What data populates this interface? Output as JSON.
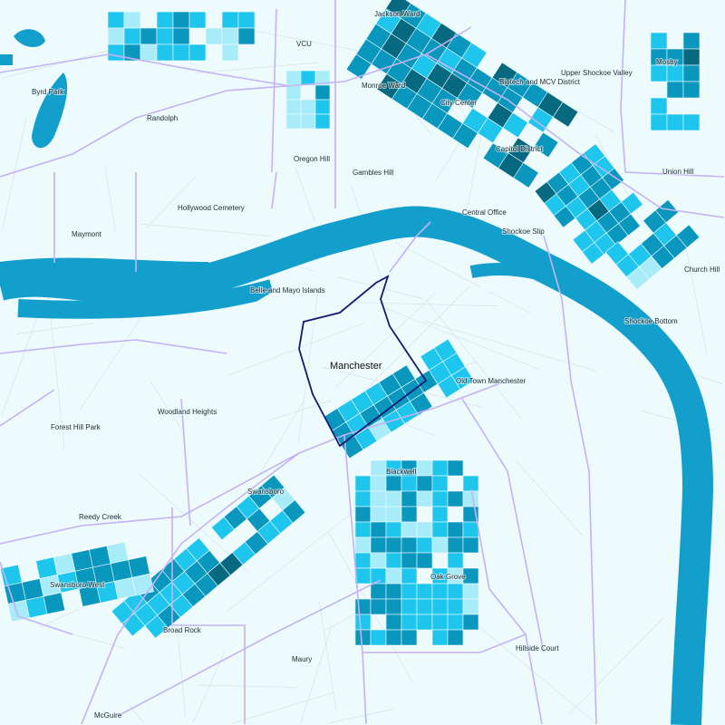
{
  "map": {
    "highlighted_neighborhood": "Manchester",
    "colors": {
      "background": "#eefbfd",
      "water": "#139fcb",
      "level_1": "#a9ecf9",
      "level_2": "#1ec6ee",
      "level_3": "#0a97be",
      "level_4": "#06697f",
      "neighborhood_border": "#c4b2f3",
      "highlight_border": "#141a73",
      "street": "#d5e3e8"
    },
    "labels": {
      "jackson_ward": "Jackson Ward",
      "vcu": "VCU",
      "mosby": "Mosby",
      "upper_shockoe_valley": "Upper Shockoe Valley",
      "byrd_park": "Byrd Park",
      "monroe_ward": "Monroe Ward",
      "biotech": "Biotech and MCV District",
      "city_center": "City Center",
      "randolph": "Randolph",
      "capitol_district": "Capitol District",
      "oregon_hill": "Oregon Hill",
      "gambles_hill": "Gambles Hill",
      "union_hill": "Union Hill",
      "hollywood_cemetery": "Hollywood Cemetery",
      "central_office": "Central Office",
      "maymont": "Maymont",
      "shockoe_slip": "Shockoe Slip",
      "church_hill": "Church Hill",
      "belle_isle": "Belle and Mayo Islands",
      "shockoe_bottom": "Shockoe Bottom",
      "manchester": "Manchester",
      "old_town_manchester": "Old Town Manchester",
      "forest_hill_park": "Forest Hill Park",
      "woodland_heights": "Woodland Heights",
      "blackwell": "Blackwell",
      "swansboro": "Swansboro",
      "reedy_creek": "Reedy Creek",
      "swansboro_west": "Swansboro West",
      "oak_grove": "Oak Grove",
      "broad_rock": "Broad Rock",
      "maury": "Maury",
      "hillside_court": "Hillside Court",
      "mcguire": "McGuire"
    }
  }
}
